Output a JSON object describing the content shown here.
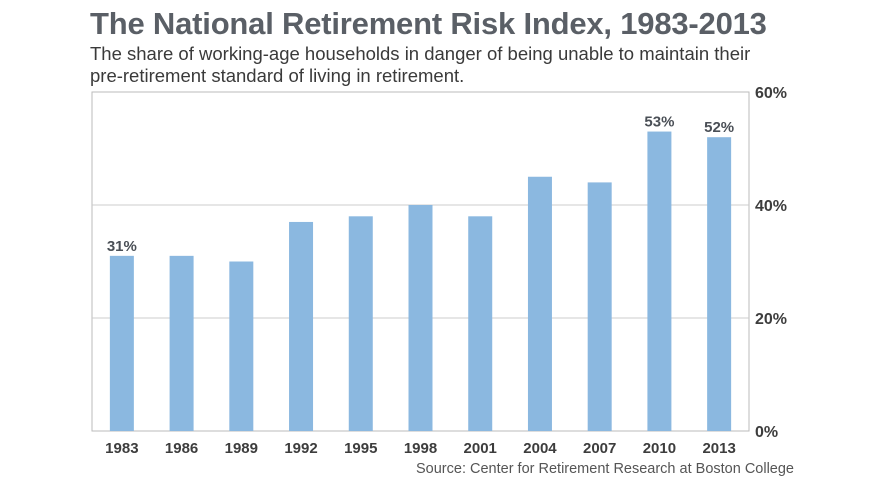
{
  "title": "The National Retirement Risk Index, 1983-2013",
  "subtitle": "The share of working-age households in danger of being unable to maintain their pre-retirement standard of living in retirement.",
  "source": "Source: Center for Retirement Research at Boston College",
  "colors": {
    "bar": "#8bb8e0",
    "grid": "#cccccc",
    "frame": "#bbbbbb",
    "title": "#5a5f66"
  },
  "chart_data": {
    "type": "bar",
    "title": "The National Retirement Risk Index, 1983-2013",
    "categories": [
      "1983",
      "1986",
      "1989",
      "1992",
      "1995",
      "1998",
      "2001",
      "2004",
      "2007",
      "2010",
      "2013"
    ],
    "values": [
      31,
      31,
      30,
      37,
      38,
      40,
      38,
      45,
      44,
      53,
      52
    ],
    "ylim": [
      0,
      60
    ],
    "yticks": [
      0,
      20,
      40,
      60
    ],
    "ytick_labels": [
      "0%",
      "20%",
      "40%",
      "60%"
    ],
    "y_axis_side": "right",
    "grid": true,
    "data_labels": {
      "1983": "31%",
      "2010": "53%",
      "2013": "52%"
    },
    "xlabel": "",
    "ylabel": ""
  }
}
